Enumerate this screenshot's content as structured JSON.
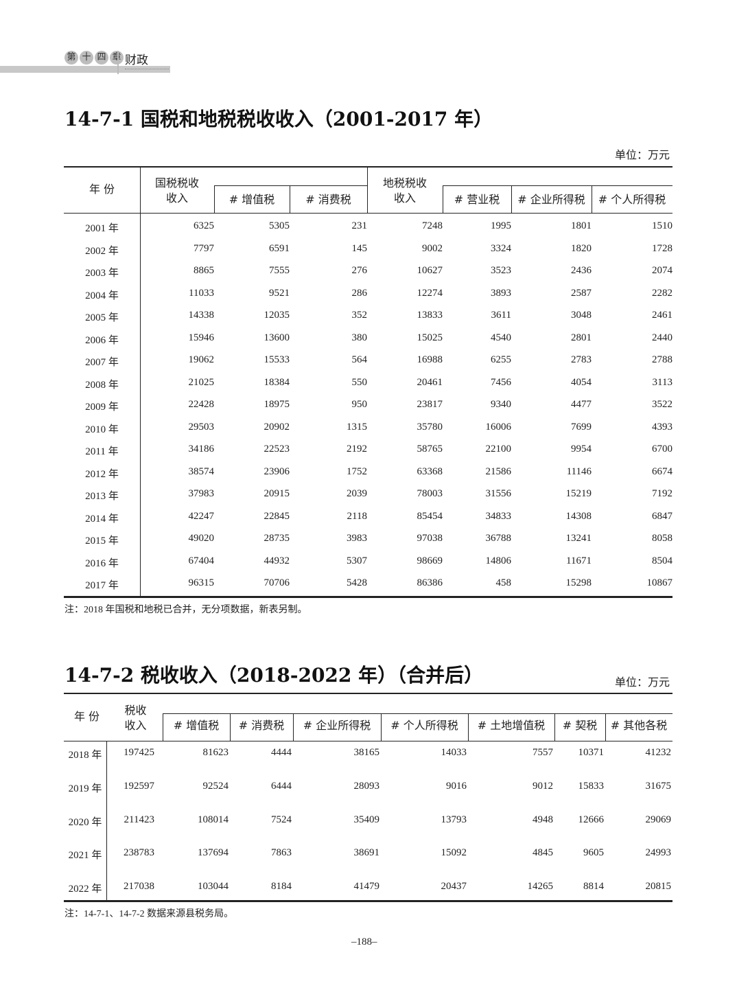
{
  "header": {
    "chapter_badges": [
      "第",
      "十",
      "四",
      "章"
    ],
    "chapter_name": "财政"
  },
  "table1": {
    "title": "14-7-1  国税和地税税收收入（2001-2017 年）",
    "unit": "单位：万元",
    "headers": {
      "year": "年 份",
      "national": [
        "国税税收",
        "收入"
      ],
      "vat": "# 增值税",
      "consumption": "# 消费税",
      "local": [
        "地税税收",
        "收入"
      ],
      "business": "# 营业税",
      "corporate": "# 企业所得税",
      "personal": "# 个人所得税"
    },
    "rows": [
      [
        "2001 年",
        "6325",
        "5305",
        "231",
        "7248",
        "1995",
        "1801",
        "1510"
      ],
      [
        "2002 年",
        "7797",
        "6591",
        "145",
        "9002",
        "3324",
        "1820",
        "1728"
      ],
      [
        "2003 年",
        "8865",
        "7555",
        "276",
        "10627",
        "3523",
        "2436",
        "2074"
      ],
      [
        "2004 年",
        "11033",
        "9521",
        "286",
        "12274",
        "3893",
        "2587",
        "2282"
      ],
      [
        "2005 年",
        "14338",
        "12035",
        "352",
        "13833",
        "3611",
        "3048",
        "2461"
      ],
      [
        "2006 年",
        "15946",
        "13600",
        "380",
        "15025",
        "4540",
        "2801",
        "2440"
      ],
      [
        "2007 年",
        "19062",
        "15533",
        "564",
        "16988",
        "6255",
        "2783",
        "2788"
      ],
      [
        "2008 年",
        "21025",
        "18384",
        "550",
        "20461",
        "7456",
        "4054",
        "3113"
      ],
      [
        "2009 年",
        "22428",
        "18975",
        "950",
        "23817",
        "9340",
        "4477",
        "3522"
      ],
      [
        "2010 年",
        "29503",
        "20902",
        "1315",
        "35780",
        "16006",
        "7699",
        "4393"
      ],
      [
        "2011 年",
        "34186",
        "22523",
        "2192",
        "58765",
        "22100",
        "9954",
        "6700"
      ],
      [
        "2012 年",
        "38574",
        "23906",
        "1752",
        "63368",
        "21586",
        "11146",
        "6674"
      ],
      [
        "2013 年",
        "37983",
        "20915",
        "2039",
        "78003",
        "31556",
        "15219",
        "7192"
      ],
      [
        "2014 年",
        "42247",
        "22845",
        "2118",
        "85454",
        "34833",
        "14308",
        "6847"
      ],
      [
        "2015 年",
        "49020",
        "28735",
        "3983",
        "97038",
        "36788",
        "13241",
        "8058"
      ],
      [
        "2016 年",
        "67404",
        "44932",
        "5307",
        "98669",
        "14806",
        "11671",
        "8504"
      ],
      [
        "2017 年",
        "96315",
        "70706",
        "5428",
        "86386",
        "458",
        "15298",
        "10867"
      ]
    ],
    "note": "注：2018 年国税和地税已合并，无分项数据，新表另制。"
  },
  "table2": {
    "title": "14-7-2  税收收入（2018-2022 年）（合并后）",
    "unit": "单位：万元",
    "headers": {
      "year": "年 份",
      "total": [
        "税收",
        "收入"
      ],
      "sub": [
        "# 增值税",
        "# 消费税",
        "# 企业所得税",
        "# 个人所得税",
        "# 土地增值税",
        "# 契税",
        "# 其他各税"
      ]
    },
    "rows": [
      [
        "2018 年",
        "197425",
        "81623",
        "4444",
        "38165",
        "14033",
        "7557",
        "10371",
        "41232"
      ],
      [
        "2019 年",
        "192597",
        "92524",
        "6444",
        "28093",
        "9016",
        "9012",
        "15833",
        "31675"
      ],
      [
        "2020 年",
        "211423",
        "108014",
        "7524",
        "35409",
        "13793",
        "4948",
        "12666",
        "29069"
      ],
      [
        "2021 年",
        "238783",
        "137694",
        "7863",
        "38691",
        "15092",
        "4845",
        "9605",
        "24993"
      ],
      [
        "2022 年",
        "217038",
        "103044",
        "8184",
        "41479",
        "20437",
        "14265",
        "8814",
        "20815"
      ]
    ],
    "note": "注：14-7-1、14-7-2 数据来源县税务局。"
  },
  "footer": {
    "page_number": "–188–"
  }
}
